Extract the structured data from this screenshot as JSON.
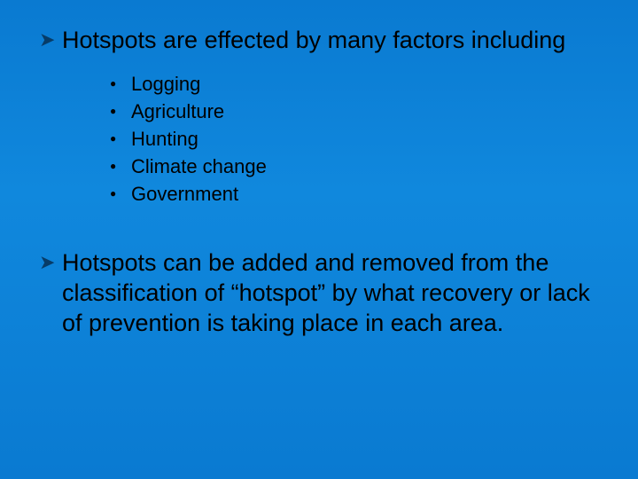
{
  "slide": {
    "background_gradient_top": "#0a7ad1",
    "background_gradient_mid": "#1088dd",
    "background_gradient_bottom": "#0a7ad1",
    "text_color": "#000000",
    "arrow_bullet_color": "#073c68",
    "dot_bullet_color": "#000000",
    "title_fontsize": 27,
    "sub_fontsize": 22,
    "bullets": [
      {
        "text": "Hotspots are effected by many factors including",
        "sub": [
          "Logging",
          "Agriculture",
          "Hunting",
          "Climate change",
          "Government"
        ]
      },
      {
        "text": "Hotspots can be added and removed from the classification of “hotspot” by what recovery or lack of prevention is taking place in each area.",
        "sub": []
      }
    ]
  }
}
